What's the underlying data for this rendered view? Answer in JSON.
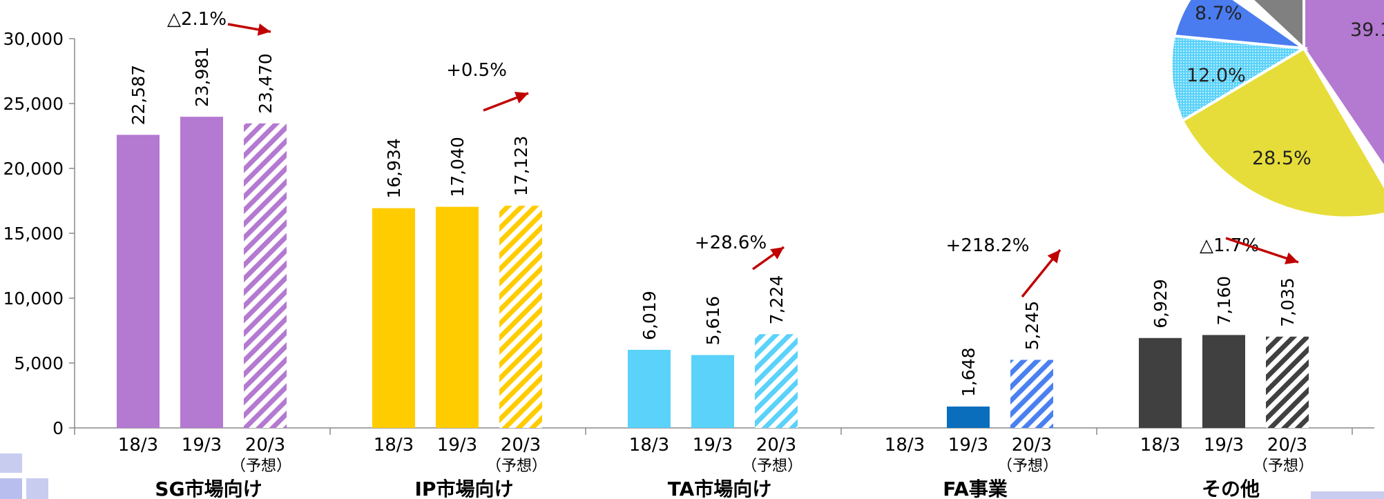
{
  "chart_data": [
    {
      "type": "bar",
      "ylim": [
        0,
        30000
      ],
      "yticks": [
        "0",
        "5,000",
        "10,000",
        "15,000",
        "20,000",
        "25,000",
        "30,000"
      ],
      "categories": [
        "18/3",
        "19/3",
        "20/3"
      ],
      "forecast_note": "（予想）",
      "groups": [
        {
          "name": "SG市場向け",
          "color": "#b479d1",
          "values": [
            22587,
            23981,
            23470
          ],
          "labels": [
            "22,587",
            "23,981",
            "23,470"
          ],
          "change": "△2.1%"
        },
        {
          "name": "IP市場向け",
          "color": "#ffcc00",
          "values": [
            16934,
            17040,
            17123
          ],
          "labels": [
            "16,934",
            "17,040",
            "17,123"
          ],
          "change": "+0.5%"
        },
        {
          "name": "TA市場向け",
          "color": "#5ad2fa",
          "values": [
            6019,
            5616,
            7224
          ],
          "labels": [
            "6,019",
            "5,616",
            "7,224"
          ],
          "change": "+28.6%"
        },
        {
          "name": "FA事業",
          "color": "#0a6ebd",
          "values": [
            null,
            1648,
            5245
          ],
          "labels": [
            "",
            "1,648",
            "5,245"
          ],
          "change": "+218.2%",
          "forecast_color": "#4a80f0"
        },
        {
          "name": "その他",
          "color": "#404040",
          "values": [
            6929,
            7160,
            7035
          ],
          "labels": [
            "6,929",
            "7,160",
            "7,035"
          ],
          "change": "△1.7%"
        }
      ]
    },
    {
      "type": "pie",
      "visible_labels": [
        "39.1",
        "28.5%",
        "12.0%",
        "8.7%"
      ],
      "colors": {
        "sg": "#b479d1",
        "ip": "#e6dd3a",
        "ta": "#5ad2fa",
        "fa": "#4a7cf0",
        "other": "#808080"
      }
    }
  ],
  "arrow_color": "#c00000"
}
